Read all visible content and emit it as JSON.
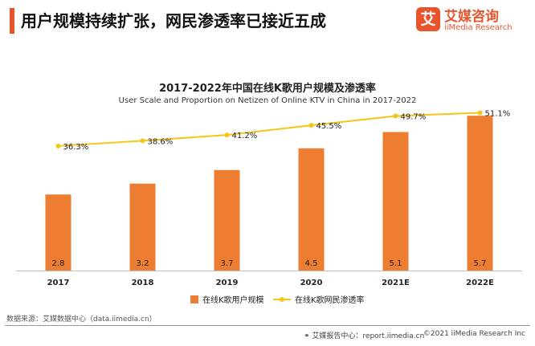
{
  "headline": "用户规模持续扩张，网民渗透率已接近五成",
  "logo": {
    "mark": "艾",
    "name_cn": "艾媒咨询",
    "name_en": "iiMedia Research"
  },
  "colors": {
    "brand": "#e8552d",
    "bar": "#ed7d31",
    "line": "#f5c518",
    "text": "#1a1a1a"
  },
  "chart_data": {
    "type": "bar",
    "title": "2017-2022年中国在线K歌用户规模及渗透率",
    "subtitle": "User Scale and Proportion on Netizen of Online KTV in China in 2017-2022",
    "categories": [
      "2017",
      "2018",
      "2019",
      "2020",
      "2021E",
      "2022E"
    ],
    "series": [
      {
        "name": "在线K歌用户规模",
        "type": "bar",
        "values": [
          2.8,
          3.2,
          3.7,
          4.5,
          5.1,
          5.7
        ],
        "labels": [
          "2.8",
          "3.2",
          "3.7",
          "4.5",
          "5.1",
          "5.7"
        ]
      },
      {
        "name": "在线K歌网民渗透率",
        "type": "line",
        "values": [
          36.3,
          38.6,
          41.2,
          45.5,
          49.7,
          51.1
        ],
        "labels": [
          "36.3%",
          "38.6%",
          "41.2%",
          "45.5%",
          "49.7%",
          "51.1%"
        ]
      }
    ],
    "ylim": [
      0,
      6
    ],
    "y2lim": [
      0,
      80
    ],
    "grid": false,
    "legend": "bottom-center"
  },
  "source": "数据来源：艾媒数据中心（data.iimedia.cn）",
  "footer": {
    "report": "艾媒报告中心：report.iimedia.cn",
    "copyright": "©2021  iiMedia Research  Inc"
  }
}
